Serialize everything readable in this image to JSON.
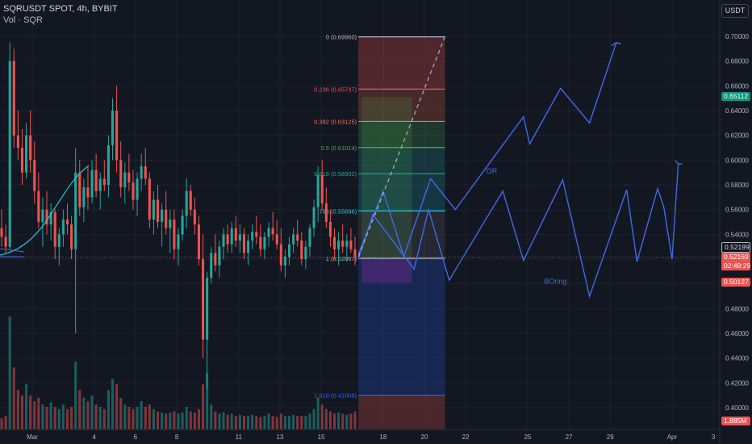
{
  "header": {
    "symbol_line": "SQRUSDT SPOT, 4h, BYBIT",
    "volume_line": "Vol · SQR",
    "currency_button": "USDT"
  },
  "price_tags": {
    "fib_top_region": "0.65112",
    "last_price": "0.52199",
    "current_price": "0.52169",
    "countdown": "02:49:29",
    "low_tag": "0.50127",
    "volume_tag": "1.885M"
  },
  "colors": {
    "background": "#131722",
    "bull": "#26a69a",
    "bear": "#ef5350",
    "projection": "#3f6be8"
  },
  "chart_data": {
    "type": "candlestick",
    "y_axis": {
      "ticks": [
        0.4,
        0.42,
        0.44,
        0.46,
        0.48,
        0.5,
        0.52,
        0.54,
        0.56,
        0.58,
        0.6,
        0.62,
        0.64,
        0.66,
        0.68,
        0.7
      ],
      "tick_labels": [
        "0.40000",
        "0.42000",
        "0.44000",
        "0.46000",
        "0.48000",
        "0.50000",
        "0.52000",
        "0.54000",
        "0.56000",
        "0.58000",
        "0.60000",
        "0.62000",
        "0.64000",
        "0.66000",
        "0.68000",
        "0.70000"
      ],
      "range": [
        0.39,
        0.71
      ]
    },
    "x_axis": {
      "tick_labels": [
        "Mar",
        "4",
        "6",
        "8",
        "11",
        "13",
        "15",
        "18",
        "20",
        "22",
        "25",
        "27",
        "29",
        "Apr",
        "3"
      ],
      "tick_days": [
        1,
        4,
        6,
        8,
        11,
        13,
        15,
        18,
        20,
        22,
        25,
        27,
        29,
        32,
        34
      ]
    },
    "fibonacci": [
      {
        "label": "0 (0.69960)",
        "value": 0.6996,
        "color": "#b2b5be"
      },
      {
        "label": "0.236 (0.65737)",
        "value": 0.65737,
        "color": "#ef5350"
      },
      {
        "label": "0.382 (0.63125)",
        "value": 0.63125,
        "color": "#ff7043"
      },
      {
        "label": "0.5 (0.61014)",
        "value": 0.61014,
        "color": "#4caf50"
      },
      {
        "label": "0.618 (0.58902)",
        "value": 0.58902,
        "color": "#26a69a"
      },
      {
        "label": "786 (0.55896)",
        "value": 0.55896,
        "color": "#26c6da"
      },
      {
        "label": "1 (0.52067)",
        "value": 0.52067,
        "color": "#b2b5be"
      },
      {
        "label": "1.618 (0.41008)",
        "value": 0.41008,
        "color": "#2962ff"
      }
    ],
    "fib_day_range": [
      16.8,
      21.0
    ],
    "candles_ohlc": [
      [
        0.545,
        0.56,
        0.53,
        0.538
      ],
      [
        0.538,
        0.548,
        0.525,
        0.53
      ],
      [
        0.53,
        0.695,
        0.528,
        0.68
      ],
      [
        0.68,
        0.69,
        0.61,
        0.62
      ],
      [
        0.62,
        0.64,
        0.6,
        0.61
      ],
      [
        0.61,
        0.625,
        0.58,
        0.59
      ],
      [
        0.59,
        0.63,
        0.585,
        0.62
      ],
      [
        0.62,
        0.64,
        0.59,
        0.6
      ],
      [
        0.6,
        0.615,
        0.565,
        0.575
      ],
      [
        0.575,
        0.59,
        0.545,
        0.55
      ],
      [
        0.55,
        0.57,
        0.53,
        0.56
      ],
      [
        0.56,
        0.575,
        0.54,
        0.548
      ],
      [
        0.548,
        0.565,
        0.535,
        0.558
      ],
      [
        0.558,
        0.56,
        0.52,
        0.53
      ],
      [
        0.53,
        0.545,
        0.515,
        0.54
      ],
      [
        0.54,
        0.56,
        0.53,
        0.552
      ],
      [
        0.552,
        0.565,
        0.54,
        0.548
      ],
      [
        0.548,
        0.555,
        0.52,
        0.528
      ],
      [
        0.528,
        0.61,
        0.46,
        0.59
      ],
      [
        0.59,
        0.6,
        0.555,
        0.562
      ],
      [
        0.562,
        0.585,
        0.55,
        0.578
      ],
      [
        0.578,
        0.595,
        0.56,
        0.57
      ],
      [
        0.57,
        0.6,
        0.565,
        0.592
      ],
      [
        0.592,
        0.605,
        0.57,
        0.575
      ],
      [
        0.575,
        0.59,
        0.56,
        0.585
      ],
      [
        0.585,
        0.6,
        0.575,
        0.58
      ],
      [
        0.58,
        0.62,
        0.57,
        0.612
      ],
      [
        0.612,
        0.65,
        0.6,
        0.64
      ],
      [
        0.64,
        0.66,
        0.59,
        0.6
      ],
      [
        0.6,
        0.615,
        0.57,
        0.578
      ],
      [
        0.578,
        0.598,
        0.565,
        0.59
      ],
      [
        0.59,
        0.605,
        0.575,
        0.582
      ],
      [
        0.582,
        0.592,
        0.56,
        0.568
      ],
      [
        0.568,
        0.59,
        0.555,
        0.585
      ],
      [
        0.585,
        0.605,
        0.575,
        0.595
      ],
      [
        0.595,
        0.61,
        0.58,
        0.585
      ],
      [
        0.585,
        0.59,
        0.545,
        0.552
      ],
      [
        0.552,
        0.575,
        0.54,
        0.568
      ],
      [
        0.568,
        0.58,
        0.545,
        0.55
      ],
      [
        0.55,
        0.565,
        0.53,
        0.56
      ],
      [
        0.56,
        0.575,
        0.54,
        0.545
      ],
      [
        0.545,
        0.56,
        0.525,
        0.552
      ],
      [
        0.552,
        0.56,
        0.52,
        0.528
      ],
      [
        0.528,
        0.545,
        0.515,
        0.54
      ],
      [
        0.54,
        0.56,
        0.535,
        0.555
      ],
      [
        0.555,
        0.585,
        0.545,
        0.575
      ],
      [
        0.575,
        0.58,
        0.555,
        0.56
      ],
      [
        0.56,
        0.57,
        0.54,
        0.548
      ],
      [
        0.548,
        0.555,
        0.515,
        0.52
      ],
      [
        0.52,
        0.54,
        0.44,
        0.455
      ],
      [
        0.455,
        0.51,
        0.415,
        0.505
      ],
      [
        0.505,
        0.53,
        0.5,
        0.525
      ],
      [
        0.525,
        0.54,
        0.51,
        0.515
      ],
      [
        0.515,
        0.535,
        0.505,
        0.53
      ],
      [
        0.53,
        0.545,
        0.52,
        0.54
      ],
      [
        0.54,
        0.548,
        0.525,
        0.532
      ],
      [
        0.532,
        0.55,
        0.525,
        0.545
      ],
      [
        0.545,
        0.555,
        0.53,
        0.535
      ],
      [
        0.535,
        0.548,
        0.525,
        0.54
      ],
      [
        0.54,
        0.545,
        0.52,
        0.525
      ],
      [
        0.525,
        0.54,
        0.515,
        0.535
      ],
      [
        0.535,
        0.548,
        0.528,
        0.542
      ],
      [
        0.542,
        0.555,
        0.532,
        0.538
      ],
      [
        0.538,
        0.548,
        0.522,
        0.528
      ],
      [
        0.528,
        0.542,
        0.52,
        0.538
      ],
      [
        0.538,
        0.55,
        0.53,
        0.545
      ],
      [
        0.545,
        0.558,
        0.535,
        0.54
      ],
      [
        0.54,
        0.552,
        0.528,
        0.532
      ],
      [
        0.532,
        0.545,
        0.51,
        0.515
      ],
      [
        0.515,
        0.528,
        0.505,
        0.522
      ],
      [
        0.522,
        0.538,
        0.515,
        0.532
      ],
      [
        0.532,
        0.545,
        0.525,
        0.54
      ],
      [
        0.54,
        0.552,
        0.53,
        0.535
      ],
      [
        0.535,
        0.542,
        0.515,
        0.52
      ],
      [
        0.52,
        0.535,
        0.512,
        0.53
      ],
      [
        0.53,
        0.548,
        0.522,
        0.545
      ],
      [
        0.545,
        0.568,
        0.538,
        0.562
      ],
      [
        0.562,
        0.595,
        0.55,
        0.588
      ],
      [
        0.588,
        0.6,
        0.56,
        0.565
      ],
      [
        0.565,
        0.578,
        0.545,
        0.55
      ],
      [
        0.55,
        0.56,
        0.53,
        0.538
      ],
      [
        0.538,
        0.545,
        0.52,
        0.528
      ],
      [
        0.528,
        0.542,
        0.515,
        0.535
      ],
      [
        0.535,
        0.548,
        0.525,
        0.53
      ],
      [
        0.53,
        0.54,
        0.518,
        0.535
      ],
      [
        0.535,
        0.545,
        0.525,
        0.528
      ],
      [
        0.528,
        0.538,
        0.515,
        0.522
      ]
    ],
    "volume_shares": [
      0.1,
      0.12,
      1.0,
      0.55,
      0.35,
      0.3,
      0.4,
      0.3,
      0.25,
      0.28,
      0.22,
      0.2,
      0.24,
      0.2,
      0.18,
      0.22,
      0.18,
      0.2,
      0.6,
      0.35,
      0.28,
      0.25,
      0.3,
      0.22,
      0.2,
      0.18,
      0.35,
      0.45,
      0.4,
      0.28,
      0.22,
      0.2,
      0.18,
      0.2,
      0.25,
      0.2,
      0.22,
      0.18,
      0.16,
      0.15,
      0.14,
      0.15,
      0.16,
      0.14,
      0.15,
      0.2,
      0.16,
      0.15,
      0.18,
      0.4,
      0.5,
      0.22,
      0.16,
      0.14,
      0.15,
      0.13,
      0.14,
      0.12,
      0.13,
      0.12,
      0.12,
      0.13,
      0.12,
      0.11,
      0.12,
      0.14,
      0.12,
      0.11,
      0.14,
      0.12,
      0.12,
      0.13,
      0.12,
      0.12,
      0.12,
      0.14,
      0.18,
      0.28,
      0.22,
      0.18,
      0.16,
      0.14,
      0.15,
      0.14,
      0.13,
      0.14,
      0.16
    ],
    "projection_up": [
      [
        16.8,
        0.524
      ],
      [
        18.0,
        0.575
      ],
      [
        19.0,
        0.522
      ],
      [
        20.3,
        0.585
      ],
      [
        21.5,
        0.56
      ],
      [
        24.8,
        0.635
      ],
      [
        25.1,
        0.613
      ],
      [
        26.6,
        0.658
      ],
      [
        28.0,
        0.63
      ],
      [
        29.3,
        0.695
      ]
    ],
    "projection_down": [
      [
        16.8,
        0.52
      ],
      [
        17.5,
        0.556
      ],
      [
        19.5,
        0.512
      ],
      [
        20.2,
        0.56
      ],
      [
        21.2,
        0.503
      ],
      [
        23.8,
        0.575
      ],
      [
        24.8,
        0.519
      ],
      [
        26.7,
        0.584
      ],
      [
        28.0,
        0.49
      ],
      [
        29.8,
        0.576
      ],
      [
        30.3,
        0.518
      ],
      [
        31.3,
        0.577
      ],
      [
        31.6,
        0.562
      ],
      [
        32.0,
        0.52
      ],
      [
        32.3,
        0.597
      ]
    ],
    "annotations": [
      {
        "text": "OR",
        "day": 23.0,
        "value": 0.589
      },
      {
        "text": "BOring",
        "day": 25.8,
        "value": 0.5
      }
    ],
    "dashed_target": [
      [
        16.8,
        0.522
      ],
      [
        21.0,
        0.7
      ]
    ]
  }
}
